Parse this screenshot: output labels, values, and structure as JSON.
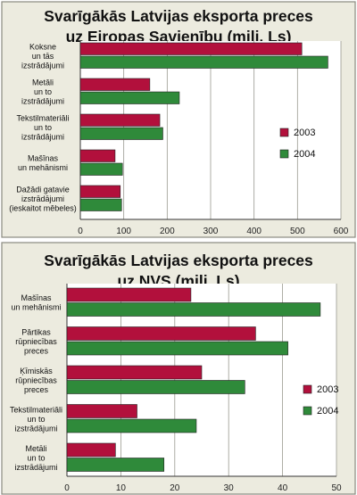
{
  "chart_data": [
    {
      "type": "bar",
      "orientation": "horizontal",
      "title": [
        "Svarīgākās Latvijas eksporta preces",
        "uz Eiropas Savienību (milj. Ls)"
      ],
      "categories": [
        [
          "Koksne",
          "un tās",
          "izstrādājumi"
        ],
        [
          "Metāli",
          "un to",
          "izstrādājumi"
        ],
        [
          "Tekstilmateriāli",
          "un to",
          "izstrādājumi"
        ],
        [
          "Mašīnas",
          "un mehānismi"
        ],
        [
          "Dažādi gatavie",
          "izstrādājumi",
          "(ieskaitot mēbeles)"
        ]
      ],
      "series": [
        {
          "name": "2003",
          "color": "#b2103c",
          "values": [
            510,
            160,
            183,
            80,
            92
          ]
        },
        {
          "name": "2004",
          "color": "#2f8a3a",
          "values": [
            570,
            228,
            190,
            97,
            95
          ]
        }
      ],
      "xlim": [
        0,
        600
      ],
      "xticks": [
        0,
        100,
        200,
        300,
        400,
        500,
        600
      ],
      "grid": true,
      "legend_position": "right"
    },
    {
      "type": "bar",
      "orientation": "horizontal",
      "title": [
        "Svarīgākās Latvijas eksporta preces",
        "uz NVS (milj. Ls)"
      ],
      "categories": [
        [
          "Mašīnas",
          "un mehānismi"
        ],
        [
          "Pārtikas",
          "rūpniecības",
          "preces"
        ],
        [
          "Ķīmiskās",
          "rūpniecības",
          "preces"
        ],
        [
          "Tekstilmateriāli",
          "un to",
          "izstrādājumi"
        ],
        [
          "Metāli",
          "un to",
          "izstrādājumi"
        ]
      ],
      "series": [
        {
          "name": "2003",
          "color": "#b2103c",
          "values": [
            23,
            35,
            25,
            13,
            9
          ]
        },
        {
          "name": "2004",
          "color": "#2f8a3a",
          "values": [
            47,
            41,
            33,
            24,
            18
          ]
        }
      ],
      "xlim": [
        0,
        50
      ],
      "xticks": [
        0,
        10,
        20,
        30,
        40,
        50
      ],
      "grid": true,
      "legend_position": "right"
    }
  ],
  "colors": {
    "panel_bg": "#ecebdf",
    "border": "#8a8a80"
  }
}
